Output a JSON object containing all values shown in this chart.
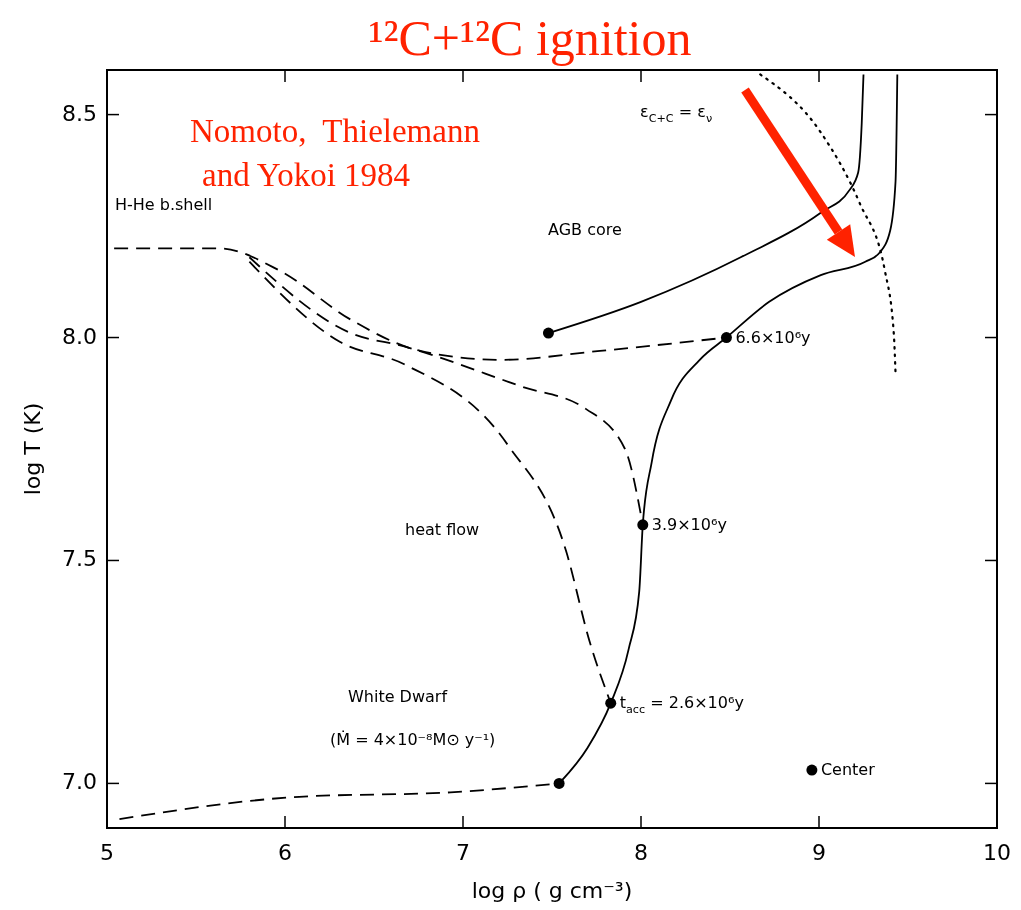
{
  "chart_data": {
    "type": "line",
    "xlabel": "log ρ ( g cm⁻³)",
    "ylabel": "log T (K)",
    "xlim": [
      5,
      10
    ],
    "ylim": [
      6.9,
      8.6
    ],
    "xticks": [
      5,
      6,
      7,
      8,
      9,
      10
    ],
    "yticks": [
      {
        "value": 7,
        "label": "7.0"
      },
      7.5,
      {
        "value": 8,
        "label": "8.0"
      },
      8.5
    ],
    "grid": false,
    "series": [
      {
        "line_style": "solid",
        "color": "#000000",
        "x": [
          7.54,
          7.7,
          7.83,
          7.93,
          7.99,
          8.01,
          8.06,
          8.17,
          8.33,
          8.48,
          8.72,
          9.01,
          9.26,
          9.34,
          9.4,
          9.43,
          9.44
        ],
        "values": [
          7.0,
          7.08,
          7.18,
          7.3,
          7.43,
          7.58,
          7.72,
          7.86,
          7.95,
          8.0,
          8.08,
          8.14,
          8.17,
          8.19,
          8.24,
          8.35,
          8.59
        ]
      },
      {
        "line_style": "solid",
        "color": "#000000",
        "x": [
          7.48,
          8.0,
          8.56,
          9.01,
          9.17,
          9.22,
          9.24,
          9.25
        ],
        "values": [
          8.01,
          8.08,
          8.18,
          8.28,
          8.33,
          8.37,
          8.48,
          8.59
        ]
      },
      {
        "line_style": "dashed",
        "color": "#000000",
        "x": [
          5.07,
          6.08,
          6.93,
          7.54
        ],
        "values": [
          6.92,
          6.97,
          6.98,
          7.0
        ]
      },
      {
        "line_style": "dashed",
        "color": "#000000",
        "x": [
          5.04,
          5.63,
          5.97,
          6.37,
          6.76,
          7.21,
          7.77,
          8.48
        ],
        "values": [
          8.2,
          8.2,
          8.15,
          8.04,
          7.97,
          7.95,
          7.97,
          8.0
        ]
      },
      {
        "line_style": "dashed",
        "color": "#000000",
        "x": [
          5.8,
          6.37,
          6.67,
          7.33,
          7.69,
          7.91,
          8.01
        ],
        "values": [
          8.18,
          8.01,
          7.98,
          7.89,
          7.84,
          7.75,
          7.58
        ]
      },
      {
        "line_style": "dashed",
        "color": "#000000",
        "x": [
          5.8,
          6.31,
          6.67,
          7.25,
          7.58,
          7.71,
          7.83
        ],
        "values": [
          8.17,
          7.99,
          7.94,
          7.76,
          7.52,
          7.32,
          7.18
        ]
      },
      {
        "line_style": "dotted",
        "color": "#000000",
        "x": [
          8.67,
          9.01,
          9.23,
          9.37,
          9.42,
          9.43
        ],
        "values": [
          8.59,
          8.46,
          8.3,
          8.15,
          8.01,
          7.92
        ]
      },
      {
        "type": "scatter",
        "marker": "circle",
        "color": "#000000",
        "x": [
          7.54,
          7.83,
          8.01,
          8.48,
          7.48,
          8.96
        ],
        "values": [
          7.0,
          7.18,
          7.58,
          8.0,
          8.01,
          7.03
        ]
      }
    ],
    "annotations": [
      "¹²C+¹²C ignition",
      "Nomoto,  Thielemann\nand Yokoi 1984",
      {
        "text": "6.6×10⁶y",
        "x": 8.48,
        "y": 8.0
      },
      {
        "text": "3.9×10⁶y",
        "x": 8.01,
        "y": 7.58
      },
      {
        "text": "t$_{acc}$ = 2.6×10⁶y",
        "x": 7.83,
        "y": 7.18
      },
      {
        "text": "Center",
        "x": 8.96,
        "y": 7.03
      },
      "heat flow",
      "White Dwarf",
      "(Ṁ = 4×10⁻⁸M⊙ y⁻¹)",
      "AGB core",
      "H-He b.shell",
      "ε$_{C+C}$ = ε$_{ν}$"
    ]
  }
}
